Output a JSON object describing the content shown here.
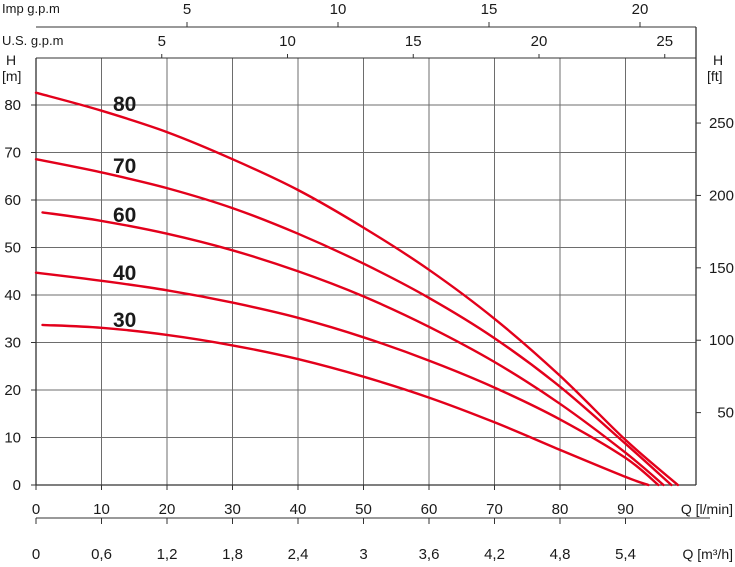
{
  "chart_data": {
    "type": "line",
    "title": "",
    "curve_color": "#e3001b",
    "grid": true,
    "x": {
      "label": "Q [l/min]",
      "range": [
        0,
        100
      ],
      "ticks": [
        0,
        10,
        20,
        30,
        40,
        50,
        60,
        70,
        80,
        90
      ]
    },
    "x_m3h": {
      "label": "Q [m³/h]",
      "ticks": [
        "0",
        "0,6",
        "1,2",
        "1,8",
        "2,4",
        "3",
        "3,6",
        "4,2",
        "4,8",
        "5,4"
      ]
    },
    "x_us_gpm": {
      "label": "U.S. g.p.m",
      "ticks": [
        5,
        10,
        15,
        20,
        25
      ]
    },
    "x_imp_gpm": {
      "label": "Imp g.p.m",
      "ticks": [
        5,
        10,
        15,
        20
      ]
    },
    "y": {
      "label_top": "H",
      "label_unit": "[m]",
      "range": [
        0,
        88
      ],
      "ticks": [
        0,
        10,
        20,
        30,
        40,
        50,
        60,
        70,
        80
      ]
    },
    "y_ft": {
      "label_top": "H",
      "label_unit": "[ft]",
      "ticks": [
        50,
        100,
        150,
        200,
        250
      ]
    },
    "series": [
      {
        "name": "80",
        "points": [
          [
            0,
            82.6
          ],
          [
            10,
            78.8
          ],
          [
            20,
            74.3
          ],
          [
            30,
            68.6
          ],
          [
            40,
            62.1
          ],
          [
            50,
            54.2
          ],
          [
            60,
            45.3
          ],
          [
            70,
            35.0
          ],
          [
            80,
            23.0
          ],
          [
            90,
            9.5
          ],
          [
            98,
            0
          ]
        ]
      },
      {
        "name": "70",
        "points": [
          [
            0,
            68.6
          ],
          [
            10,
            65.8
          ],
          [
            20,
            62.5
          ],
          [
            30,
            58.3
          ],
          [
            40,
            52.9
          ],
          [
            50,
            46.6
          ],
          [
            60,
            39.4
          ],
          [
            70,
            30.9
          ],
          [
            80,
            20.7
          ],
          [
            90,
            8.7
          ],
          [
            97,
            0
          ]
        ]
      },
      {
        "name": "60",
        "points": [
          [
            1,
            57.4
          ],
          [
            10,
            55.6
          ],
          [
            20,
            52.9
          ],
          [
            30,
            49.4
          ],
          [
            40,
            45.0
          ],
          [
            50,
            39.7
          ],
          [
            60,
            33.3
          ],
          [
            70,
            25.9
          ],
          [
            80,
            17.1
          ],
          [
            90,
            6.8
          ],
          [
            95.8,
            0
          ]
        ]
      },
      {
        "name": "40",
        "points": [
          [
            0,
            44.7
          ],
          [
            10,
            43.0
          ],
          [
            20,
            41.0
          ],
          [
            30,
            38.4
          ],
          [
            40,
            35.2
          ],
          [
            50,
            31.1
          ],
          [
            60,
            26.2
          ],
          [
            70,
            20.5
          ],
          [
            80,
            13.8
          ],
          [
            90,
            5.7
          ],
          [
            95,
            0
          ]
        ]
      },
      {
        "name": "30",
        "points": [
          [
            1,
            33.7
          ],
          [
            10,
            33.1
          ],
          [
            20,
            31.6
          ],
          [
            30,
            29.4
          ],
          [
            40,
            26.5
          ],
          [
            50,
            22.8
          ],
          [
            60,
            18.4
          ],
          [
            70,
            13.2
          ],
          [
            80,
            7.4
          ],
          [
            90,
            1.7
          ],
          [
            93.5,
            0
          ]
        ]
      }
    ]
  }
}
